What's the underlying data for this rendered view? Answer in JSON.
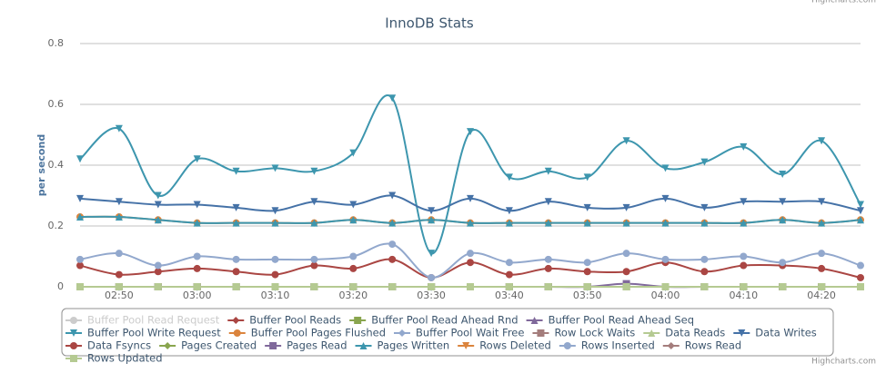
{
  "chart_data": {
    "type": "line",
    "title": "InnoDB Stats",
    "y_label": "per second",
    "credits": "Highcharts.com",
    "categories": [
      null,
      "02:50",
      null,
      "03:00",
      null,
      "03:10",
      null,
      "03:20",
      null,
      "03:30",
      null,
      "03:40",
      null,
      "03:50",
      null,
      "04:00",
      null,
      "04:10",
      null,
      "04:20",
      null
    ],
    "ylim": [
      0,
      0.8
    ],
    "yticks": [
      0,
      0.2,
      0.4,
      0.6,
      0.8
    ],
    "grid": true,
    "smooth": true,
    "legend": "bottom",
    "series": [
      {
        "name": "Buffer Pool Read Request",
        "color": "#c0c0c0",
        "symbol": "circle",
        "visible": false,
        "values": [
          null,
          null,
          null,
          null,
          null,
          null,
          null,
          null,
          null,
          null,
          null,
          null,
          null,
          null,
          null,
          null,
          null,
          null,
          null,
          null,
          null
        ]
      },
      {
        "name": "Buffer Pool Reads",
        "color": "#AA4643",
        "symbol": "diamond",
        "values": [
          0,
          0,
          0,
          0,
          0,
          0,
          0,
          0,
          0,
          0,
          0,
          0,
          0,
          0,
          0,
          0,
          0,
          0,
          0,
          0,
          0
        ]
      },
      {
        "name": "Buffer Pool Read Ahead Rnd",
        "color": "#89A54E",
        "symbol": "square",
        "values": [
          0,
          0,
          0,
          0,
          0,
          0,
          0,
          0,
          0,
          0,
          0,
          0,
          0,
          0,
          0,
          0,
          0,
          0,
          0,
          0,
          0
        ]
      },
      {
        "name": "Buffer Pool Read Ahead Seq",
        "color": "#80699B",
        "symbol": "triangle",
        "values": [
          0,
          0,
          0,
          0,
          0,
          0,
          0,
          0,
          0,
          0,
          0,
          0,
          0,
          0,
          0,
          0,
          0,
          0,
          0,
          0,
          0
        ]
      },
      {
        "name": "Buffer Pool Write Request",
        "color": "#3D96AE",
        "symbol": "triangle-down",
        "values": [
          0.42,
          0.52,
          0.3,
          0.42,
          0.38,
          0.39,
          0.38,
          0.44,
          0.62,
          0.11,
          0.51,
          0.36,
          0.38,
          0.36,
          0.48,
          0.39,
          0.41,
          0.46,
          0.37,
          0.48,
          0.27
        ]
      },
      {
        "name": "Buffer Pool Pages Flushed",
        "color": "#DB843D",
        "symbol": "circle",
        "values": [
          0.23,
          0.23,
          0.22,
          0.21,
          0.21,
          0.21,
          0.21,
          0.22,
          0.21,
          0.22,
          0.21,
          0.21,
          0.21,
          0.21,
          0.21,
          0.21,
          0.21,
          0.21,
          0.22,
          0.21,
          0.22
        ]
      },
      {
        "name": "Buffer Pool Wait Free",
        "color": "#92A8CD",
        "symbol": "diamond",
        "values": [
          0,
          0,
          0,
          0,
          0,
          0,
          0,
          0,
          0,
          0,
          0,
          0,
          0,
          0,
          0,
          0,
          0,
          0,
          0,
          0,
          0
        ]
      },
      {
        "name": "Row Lock Waits",
        "color": "#A47D7C",
        "symbol": "square",
        "values": [
          0,
          0,
          0,
          0,
          0,
          0,
          0,
          0,
          0,
          0,
          0,
          0,
          0,
          0,
          0,
          0,
          0,
          0,
          0,
          0,
          0
        ]
      },
      {
        "name": "Data Reads",
        "color": "#B5CA92",
        "symbol": "triangle",
        "values": [
          0,
          0,
          0,
          0,
          0,
          0,
          0,
          0,
          0,
          0,
          0,
          0,
          0,
          0,
          0,
          0,
          0,
          0,
          0,
          0,
          0
        ]
      },
      {
        "name": "Data Writes",
        "color": "#4572A7",
        "symbol": "triangle-down",
        "values": [
          0.29,
          0.28,
          0.27,
          0.27,
          0.26,
          0.25,
          0.28,
          0.27,
          0.3,
          0.25,
          0.29,
          0.25,
          0.28,
          0.26,
          0.26,
          0.29,
          0.26,
          0.28,
          0.28,
          0.28,
          0.25
        ]
      },
      {
        "name": "Data Fsyncs",
        "color": "#AA4643",
        "symbol": "circle",
        "values": [
          0.07,
          0.04,
          0.05,
          0.06,
          0.05,
          0.04,
          0.07,
          0.06,
          0.09,
          0.03,
          0.08,
          0.04,
          0.06,
          0.05,
          0.05,
          0.08,
          0.05,
          0.07,
          0.07,
          0.06,
          0.03
        ]
      },
      {
        "name": "Pages Created",
        "color": "#89A54E",
        "symbol": "diamond",
        "values": [
          0,
          0,
          0,
          0,
          0,
          0,
          0,
          0,
          0,
          0,
          0,
          0,
          0,
          0,
          0,
          0,
          0,
          0,
          0,
          0,
          0
        ]
      },
      {
        "name": "Pages Read",
        "color": "#80699B",
        "symbol": "square",
        "values": [
          0,
          0,
          0,
          0,
          0,
          0,
          0,
          0,
          0,
          0,
          0,
          0,
          0,
          0,
          0.01,
          0,
          0,
          0,
          0,
          0,
          0
        ]
      },
      {
        "name": "Pages Written",
        "color": "#3D96AE",
        "symbol": "triangle",
        "values": [
          0.23,
          0.23,
          0.22,
          0.21,
          0.21,
          0.21,
          0.21,
          0.22,
          0.21,
          0.22,
          0.21,
          0.21,
          0.21,
          0.21,
          0.21,
          0.21,
          0.21,
          0.21,
          0.22,
          0.21,
          0.22
        ]
      },
      {
        "name": "Rows Deleted",
        "color": "#DB843D",
        "symbol": "triangle-down",
        "values": [
          0,
          0,
          0,
          0,
          0,
          0,
          0,
          0,
          0,
          0,
          0,
          0,
          0,
          0,
          0,
          0,
          0,
          0,
          0,
          0,
          0
        ]
      },
      {
        "name": "Rows Inserted",
        "color": "#92A8CD",
        "symbol": "circle",
        "values": [
          0.09,
          0.11,
          0.07,
          0.1,
          0.09,
          0.09,
          0.09,
          0.1,
          0.14,
          0.03,
          0.11,
          0.08,
          0.09,
          0.08,
          0.11,
          0.09,
          0.09,
          0.1,
          0.08,
          0.11,
          0.07
        ]
      },
      {
        "name": "Rows Read",
        "color": "#A47D7C",
        "symbol": "diamond",
        "values": [
          0,
          0,
          0,
          0,
          0,
          0,
          0,
          0,
          0,
          0,
          0,
          0,
          0,
          0,
          0,
          0,
          0,
          0,
          0,
          0,
          0
        ]
      },
      {
        "name": "Rows Updated",
        "color": "#B5CA92",
        "symbol": "square",
        "values": [
          0,
          0,
          0,
          0,
          0,
          0,
          0,
          0,
          0,
          0,
          0,
          0,
          0,
          0,
          0,
          0,
          0,
          0,
          0,
          0,
          0
        ]
      }
    ]
  }
}
